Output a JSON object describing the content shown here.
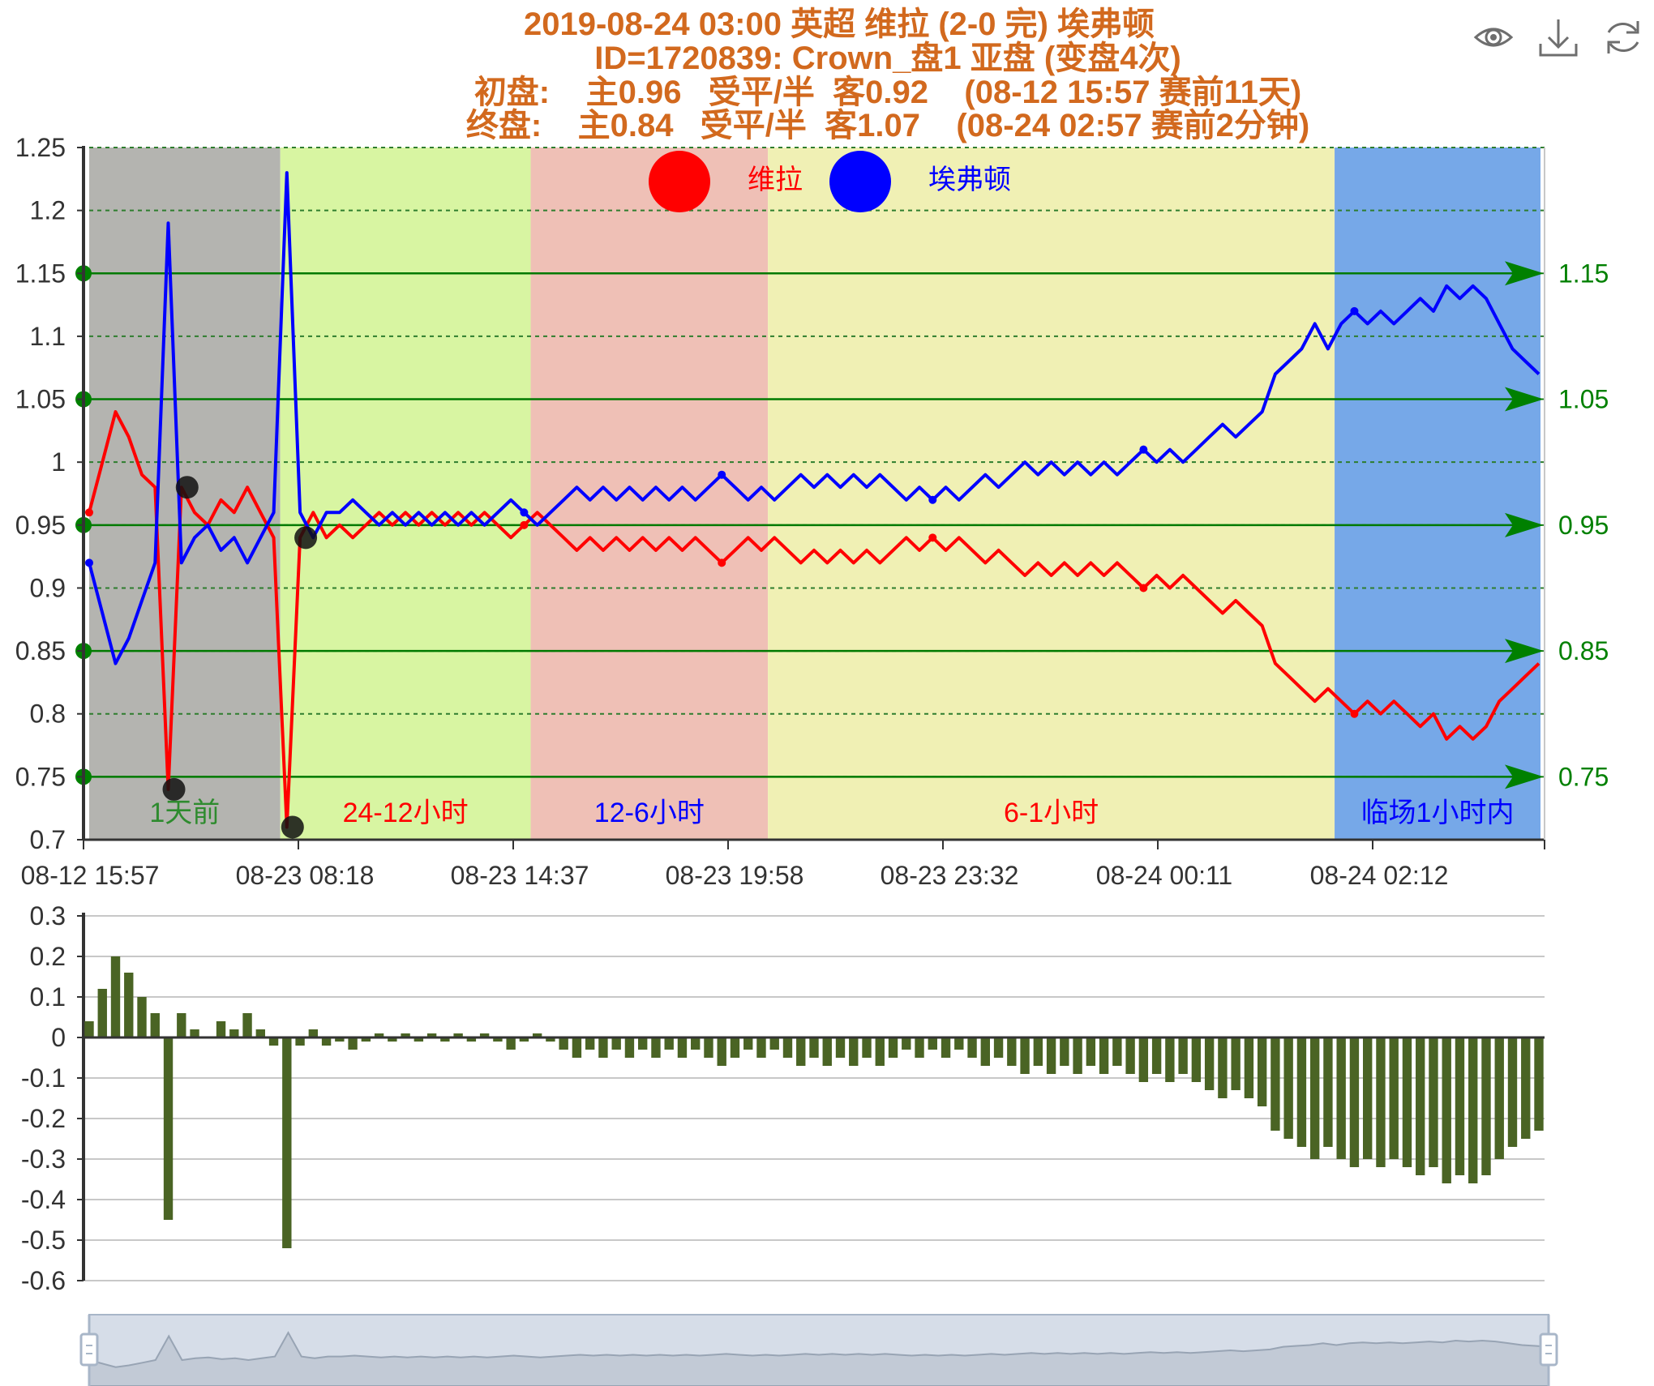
{
  "title": {
    "line1": "2019-08-24 03:00 英超 维拉 (2-0 完) 埃弗顿",
    "line2": "ID=1720839: Crown_盘1 亚盘 (变盘4次)",
    "line3": "初盘:    主0.96   受平/半  客0.92    (08-12 15:57 赛前11天)",
    "line4": "终盘:    主0.84   受平/半  客1.07    (08-24 02:57 赛前2分钟)",
    "color": "#d2691e"
  },
  "toolbox": {
    "icons": [
      "eye-icon",
      "download-icon",
      "refresh-icon"
    ]
  },
  "legend": [
    {
      "name": "维拉",
      "color": "#ff0000"
    },
    {
      "name": "埃弗顿",
      "color": "#0000ff"
    }
  ],
  "bands": [
    {
      "label": "1天前",
      "color": "#b4b4b0",
      "label_color": "#2e8b2e",
      "from": 0,
      "to": 14
    },
    {
      "label": "24-12小时",
      "color": "#d8f5a2",
      "label_color": "#ff0000",
      "from": 14,
      "to": 33
    },
    {
      "label": "12-6小时",
      "color": "#efc0b6",
      "label_color": "#0000ff",
      "from": 33,
      "to": 51
    },
    {
      "label": "6-1小时",
      "color": "#f0f0b4",
      "label_color": "#ff0000",
      "from": 51,
      "to": 94
    },
    {
      "label": "临场1小时内",
      "color": "#76a8e8",
      "label_color": "#0000ff",
      "from": 94,
      "to": 108
    }
  ],
  "right_labels": [
    {
      "value": 1.15,
      "text": "1.15"
    },
    {
      "value": 1.05,
      "text": "1.05"
    },
    {
      "value": 0.95,
      "text": "0.95"
    },
    {
      "value": 0.85,
      "text": "0.85"
    },
    {
      "value": 0.75,
      "text": "0.75"
    }
  ],
  "chart_data": {
    "type": "line",
    "main": {
      "x_tick_labels": [
        {
          "index": 0,
          "text": "08-12 15:57"
        },
        {
          "index": 16,
          "text": "08-23 08:18"
        },
        {
          "index": 32,
          "text": "08-23 14:37"
        },
        {
          "index": 48,
          "text": "08-23 19:58"
        },
        {
          "index": 64,
          "text": "08-23 23:32"
        },
        {
          "index": 80,
          "text": "08-24 00:11"
        },
        {
          "index": 96,
          "text": "08-24 02:12"
        }
      ],
      "ylim": [
        0.7,
        1.25
      ],
      "y_ticks": [
        1.25,
        1.2,
        1.15,
        1.1,
        1.05,
        1,
        0.95,
        0.9,
        0.85,
        0.8,
        0.75,
        0.7
      ],
      "y_tick_labels": [
        "1.25",
        "1.2",
        "1.15",
        "1.1",
        "1.05",
        "1",
        "0.95",
        "0.9",
        "0.85",
        "0.8",
        "0.75",
        "0.7"
      ],
      "grid": "dashed",
      "series": [
        {
          "name": "维拉",
          "color": "#ff0000",
          "values": [
            0.96,
            1.0,
            1.04,
            1.02,
            0.99,
            0.98,
            0.74,
            0.98,
            0.96,
            0.95,
            0.97,
            0.96,
            0.98,
            0.96,
            0.94,
            0.71,
            0.94,
            0.96,
            0.94,
            0.95,
            0.94,
            0.95,
            0.96,
            0.95,
            0.96,
            0.95,
            0.96,
            0.95,
            0.96,
            0.95,
            0.96,
            0.95,
            0.94,
            0.95,
            0.96,
            0.95,
            0.94,
            0.93,
            0.94,
            0.93,
            0.94,
            0.93,
            0.94,
            0.93,
            0.94,
            0.93,
            0.94,
            0.93,
            0.92,
            0.93,
            0.94,
            0.93,
            0.94,
            0.93,
            0.92,
            0.93,
            0.92,
            0.93,
            0.92,
            0.93,
            0.92,
            0.93,
            0.94,
            0.93,
            0.94,
            0.93,
            0.94,
            0.93,
            0.92,
            0.93,
            0.92,
            0.91,
            0.92,
            0.91,
            0.92,
            0.91,
            0.92,
            0.91,
            0.92,
            0.91,
            0.9,
            0.91,
            0.9,
            0.91,
            0.9,
            0.89,
            0.88,
            0.89,
            0.88,
            0.87,
            0.84,
            0.83,
            0.82,
            0.81,
            0.82,
            0.81,
            0.8,
            0.81,
            0.8,
            0.81,
            0.8,
            0.79,
            0.8,
            0.78,
            0.79,
            0.78,
            0.79,
            0.81,
            0.82,
            0.83,
            0.84
          ]
        },
        {
          "name": "埃弗顿",
          "color": "#0000ff",
          "values": [
            0.92,
            0.88,
            0.84,
            0.86,
            0.89,
            0.92,
            1.19,
            0.92,
            0.94,
            0.95,
            0.93,
            0.94,
            0.92,
            0.94,
            0.96,
            1.23,
            0.96,
            0.94,
            0.96,
            0.96,
            0.97,
            0.96,
            0.95,
            0.96,
            0.95,
            0.96,
            0.95,
            0.96,
            0.95,
            0.96,
            0.95,
            0.96,
            0.97,
            0.96,
            0.95,
            0.96,
            0.97,
            0.98,
            0.97,
            0.98,
            0.97,
            0.98,
            0.97,
            0.98,
            0.97,
            0.98,
            0.97,
            0.98,
            0.99,
            0.98,
            0.97,
            0.98,
            0.97,
            0.98,
            0.99,
            0.98,
            0.99,
            0.98,
            0.99,
            0.98,
            0.99,
            0.98,
            0.97,
            0.98,
            0.97,
            0.98,
            0.97,
            0.98,
            0.99,
            0.98,
            0.99,
            1.0,
            0.99,
            1.0,
            0.99,
            1.0,
            0.99,
            1.0,
            0.99,
            1.0,
            1.01,
            1.0,
            1.01,
            1.0,
            1.01,
            1.02,
            1.03,
            1.02,
            1.03,
            1.04,
            1.07,
            1.08,
            1.09,
            1.11,
            1.09,
            1.11,
            1.12,
            1.11,
            1.12,
            1.11,
            1.12,
            1.13,
            1.12,
            1.14,
            1.13,
            1.14,
            1.13,
            1.11,
            1.09,
            1.08,
            1.07
          ]
        }
      ],
      "black_markers": [
        {
          "index": 6,
          "value": 0.74
        },
        {
          "index": 7,
          "value": 0.98
        },
        {
          "index": 15,
          "value": 0.71
        },
        {
          "index": 16,
          "value": 0.94
        }
      ]
    },
    "diff": {
      "type": "bar",
      "ylim": [
        -0.6,
        0.3
      ],
      "y_ticks": [
        0.3,
        0.2,
        0.1,
        0,
        -0.1,
        -0.2,
        -0.3,
        -0.4,
        -0.5,
        -0.6
      ],
      "y_tick_labels": [
        "0.3",
        "0.2",
        "0.1",
        "0",
        "-0.1",
        "-0.2",
        "-0.3",
        "-0.4",
        "-0.5",
        "-0.6"
      ],
      "color": "#4a6424"
    }
  }
}
